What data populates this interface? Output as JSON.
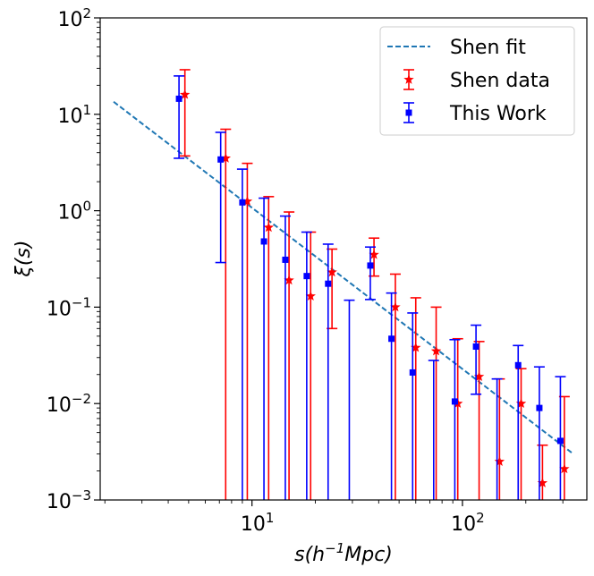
{
  "chart_data": {
    "type": "scatter",
    "xlabel": "s(h⁻¹Mpc)",
    "ylabel": "ξ(s)",
    "xscale": "log",
    "yscale": "log",
    "xlim": [
      1.9,
      390
    ],
    "ylim": [
      0.001,
      100
    ],
    "x_tick_labels": [
      {
        "value": 10,
        "label": "10",
        "exp": "1"
      },
      {
        "value": 100,
        "label": "10",
        "exp": "2"
      }
    ],
    "y_tick_labels": [
      {
        "value": 0.001,
        "label": "10",
        "exp": "−3"
      },
      {
        "value": 0.01,
        "label": "10",
        "exp": "−2"
      },
      {
        "value": 0.1,
        "label": "10",
        "exp": "−1"
      },
      {
        "value": 1,
        "label": "10",
        "exp": "0"
      },
      {
        "value": 10,
        "label": "10",
        "exp": "1"
      },
      {
        "value": 100,
        "label": "10",
        "exp": "2"
      }
    ],
    "legend": {
      "position": "top-right",
      "entries": [
        {
          "label": "Shen fit",
          "color": "#1f77b4",
          "style": "dashed-line"
        },
        {
          "label": "Shen data",
          "color": "#ff0000",
          "style": "star-errorbar"
        },
        {
          "label": "This Work",
          "color": "#0000ff",
          "style": "square-errorbar"
        }
      ]
    },
    "series": [
      {
        "name": "Shen fit",
        "kind": "line",
        "color": "#1f77b4",
        "x": [
          2.2,
          330
        ],
        "y": [
          13.5,
          0.0031
        ]
      },
      {
        "name": "Shen data",
        "kind": "errorbar",
        "marker": "star",
        "color": "#ff0000",
        "points": [
          {
            "x": 4.8,
            "y": 16,
            "lo": 3.7,
            "hi": 29
          },
          {
            "x": 7.5,
            "y": 3.5,
            "lo": 0.001,
            "hi": 7.0
          },
          {
            "x": 9.5,
            "y": 1.25,
            "lo": 0.001,
            "hi": 3.1
          },
          {
            "x": 12,
            "y": 0.67,
            "lo": 0.001,
            "hi": 1.4
          },
          {
            "x": 15,
            "y": 0.19,
            "lo": 0.001,
            "hi": 0.97
          },
          {
            "x": 19,
            "y": 0.13,
            "lo": 0.001,
            "hi": 0.6
          },
          {
            "x": 24,
            "y": 0.23,
            "lo": 0.06,
            "hi": 0.4
          },
          {
            "x": 38,
            "y": 0.35,
            "lo": 0.21,
            "hi": 0.52
          },
          {
            "x": 48,
            "y": 0.1,
            "lo": 0.001,
            "hi": 0.22
          },
          {
            "x": 60,
            "y": 0.038,
            "lo": 0.001,
            "hi": 0.125
          },
          {
            "x": 75,
            "y": 0.035,
            "lo": 0.001,
            "hi": 0.1
          },
          {
            "x": 95,
            "y": 0.01,
            "lo": 0.001,
            "hi": 0.047
          },
          {
            "x": 120,
            "y": 0.019,
            "lo": 0.001,
            "hi": 0.044
          },
          {
            "x": 150,
            "y": 0.0025,
            "lo": 0.001,
            "hi": 0.018
          },
          {
            "x": 190,
            "y": 0.01,
            "lo": 0.001,
            "hi": 0.023
          },
          {
            "x": 240,
            "y": 0.0015,
            "lo": 0.001,
            "hi": 0.0037
          },
          {
            "x": 305,
            "y": 0.0021,
            "lo": 0.001,
            "hi": 0.0118
          }
        ]
      },
      {
        "name": "This Work",
        "kind": "errorbar",
        "marker": "square",
        "color": "#0000ff",
        "points": [
          {
            "x": 4.5,
            "y": 14.5,
            "lo": 3.5,
            "hi": 25
          },
          {
            "x": 7.1,
            "y": 3.4,
            "lo": 0.29,
            "hi": 6.5
          },
          {
            "x": 9.0,
            "y": 1.22,
            "lo": 0.001,
            "hi": 2.7
          },
          {
            "x": 11.4,
            "y": 0.48,
            "lo": 0.001,
            "hi": 1.35
          },
          {
            "x": 14.4,
            "y": 0.31,
            "lo": 0.001,
            "hi": 0.88
          },
          {
            "x": 18.2,
            "y": 0.21,
            "lo": 0.001,
            "hi": 0.6
          },
          {
            "x": 23,
            "y": 0.175,
            "lo": 0.001,
            "hi": 0.45
          },
          {
            "x": 29,
            "y": 0.0008,
            "lo": 0.001,
            "hi": 0.118
          },
          {
            "x": 36.5,
            "y": 0.27,
            "lo": 0.12,
            "hi": 0.42
          },
          {
            "x": 46,
            "y": 0.047,
            "lo": 0.001,
            "hi": 0.14
          },
          {
            "x": 58,
            "y": 0.021,
            "lo": 0.001,
            "hi": 0.087
          },
          {
            "x": 73,
            "y": 0.0008,
            "lo": 0.001,
            "hi": 0.028
          },
          {
            "x": 92,
            "y": 0.0105,
            "lo": 0.001,
            "hi": 0.046
          },
          {
            "x": 116,
            "y": 0.039,
            "lo": 0.0125,
            "hi": 0.065
          },
          {
            "x": 146,
            "y": 0.0008,
            "lo": 0.001,
            "hi": 0.018
          },
          {
            "x": 184,
            "y": 0.025,
            "lo": 0.001,
            "hi": 0.04
          },
          {
            "x": 232,
            "y": 0.009,
            "lo": 0.001,
            "hi": 0.024
          },
          {
            "x": 292,
            "y": 0.0041,
            "lo": 0.001,
            "hi": 0.019
          }
        ]
      }
    ]
  }
}
